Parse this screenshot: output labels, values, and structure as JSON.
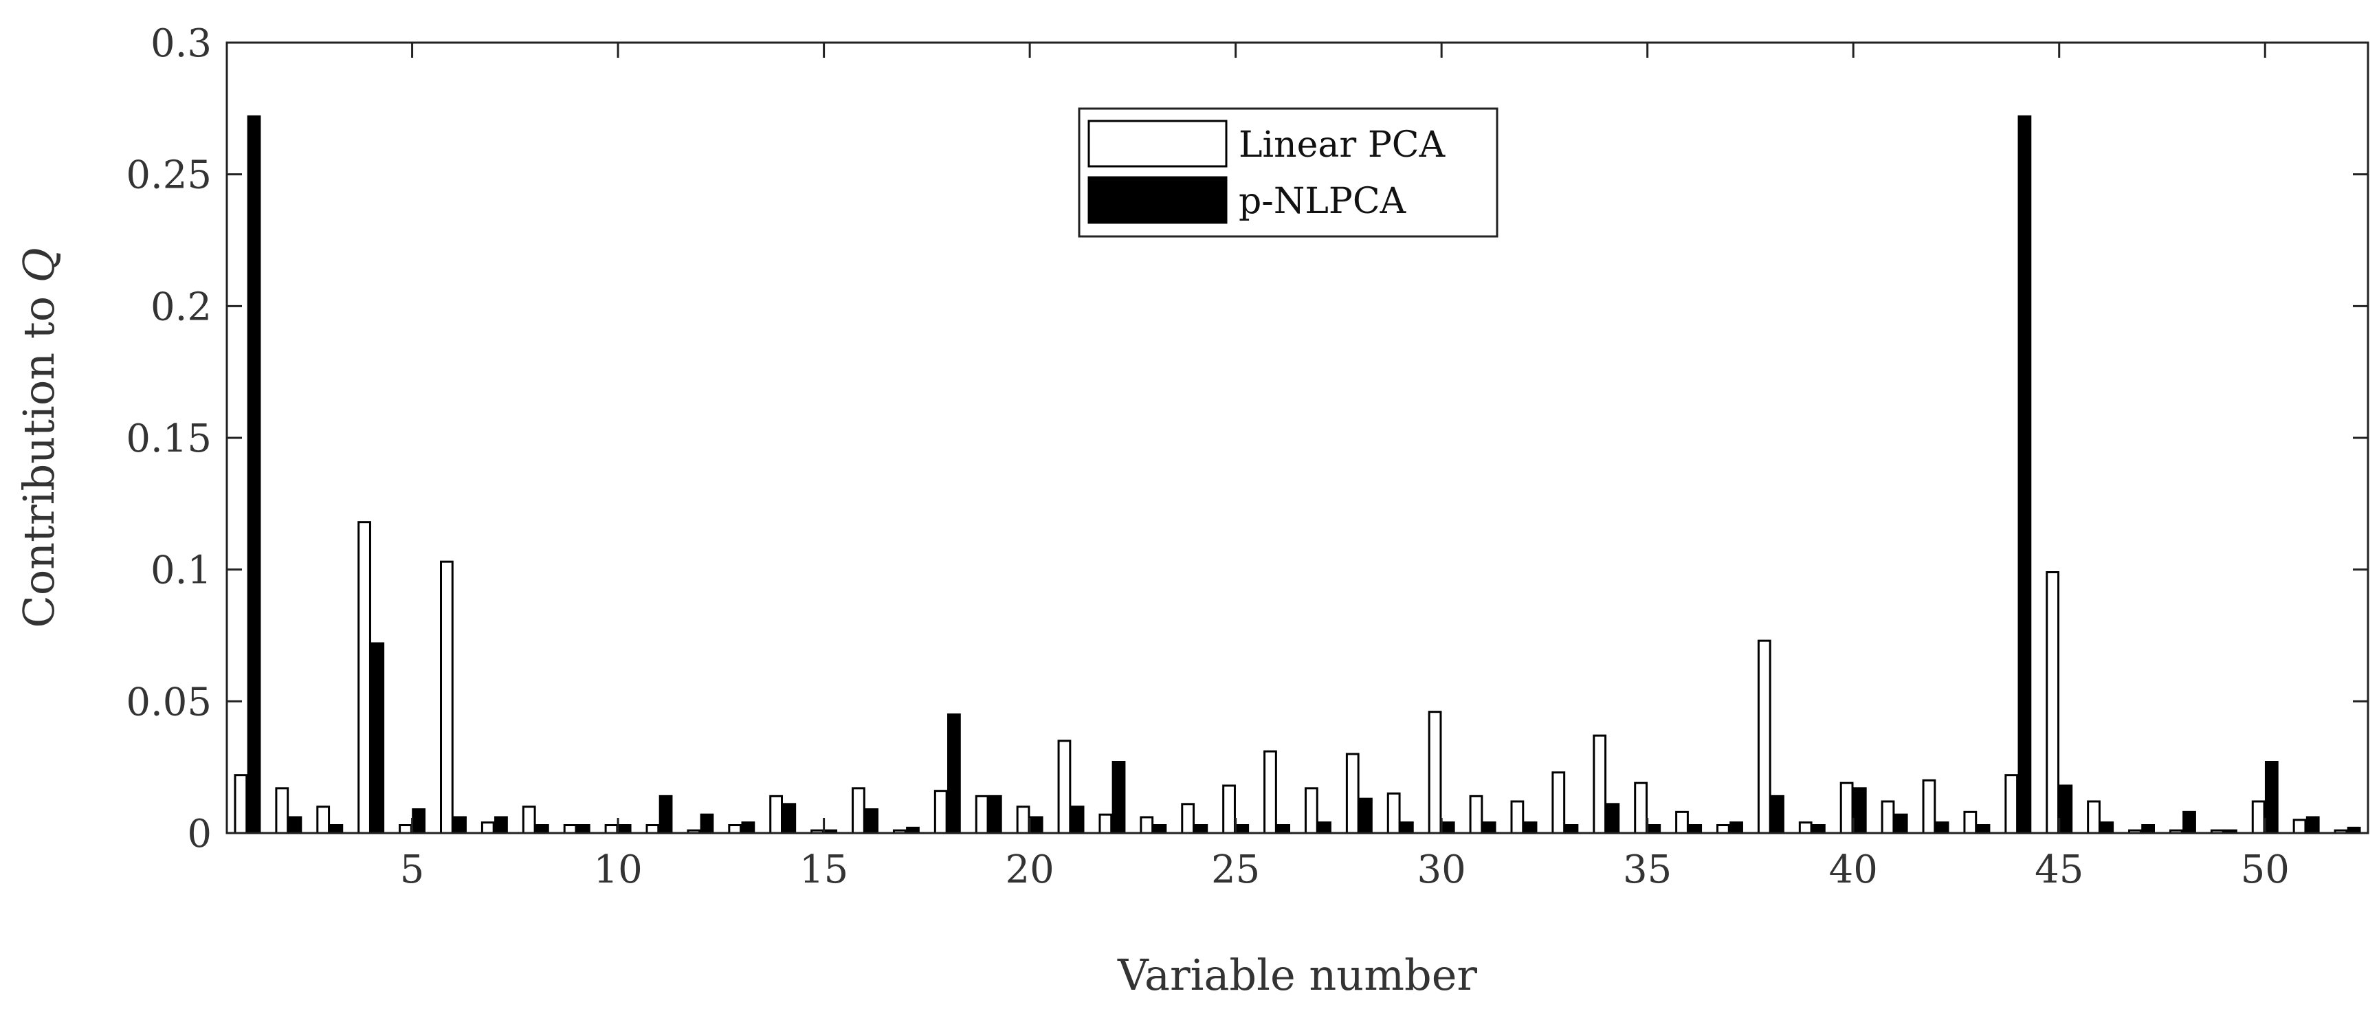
{
  "chart_data": {
    "type": "bar",
    "xlabel": "Variable number",
    "ylabel_prefix": "Contribution to ",
    "ylabel_symbol": "Q",
    "xlim": [
      0.5,
      52.5
    ],
    "ylim": [
      0,
      0.3
    ],
    "xticks": [
      5,
      10,
      15,
      20,
      25,
      30,
      35,
      40,
      45,
      50
    ],
    "yticks": [
      0,
      0.05,
      0.1,
      0.15,
      0.2,
      0.25,
      0.3
    ],
    "ytick_labels": [
      "0",
      "0.05",
      "0.1",
      "0.15",
      "0.2",
      "0.25",
      "0.3"
    ],
    "grid": false,
    "legend_position": "top-center",
    "x": [
      1,
      2,
      3,
      4,
      5,
      6,
      7,
      8,
      9,
      10,
      11,
      12,
      13,
      14,
      15,
      16,
      17,
      18,
      19,
      20,
      21,
      22,
      23,
      24,
      25,
      26,
      27,
      28,
      29,
      30,
      31,
      32,
      33,
      34,
      35,
      36,
      37,
      38,
      39,
      40,
      41,
      42,
      43,
      44,
      45,
      46,
      47,
      48,
      49,
      50,
      51,
      52
    ],
    "series": [
      {
        "name": "Linear PCA",
        "fill": "#ffffff",
        "values": [
          0.022,
          0.017,
          0.01,
          0.118,
          0.003,
          0.103,
          0.004,
          0.01,
          0.003,
          0.003,
          0.003,
          0.001,
          0.003,
          0.014,
          0.001,
          0.017,
          0.001,
          0.016,
          0.014,
          0.01,
          0.035,
          0.007,
          0.006,
          0.011,
          0.018,
          0.031,
          0.017,
          0.03,
          0.015,
          0.046,
          0.014,
          0.012,
          0.023,
          0.037,
          0.019,
          0.008,
          0.003,
          0.073,
          0.004,
          0.019,
          0.012,
          0.02,
          0.008,
          0.022,
          0.099,
          0.012,
          0.001,
          0.001,
          0.001,
          0.012,
          0.005,
          0.001
        ]
      },
      {
        "name": "p-NLPCA",
        "fill": "#000000",
        "values": [
          0.272,
          0.006,
          0.003,
          0.072,
          0.009,
          0.006,
          0.006,
          0.003,
          0.003,
          0.003,
          0.014,
          0.007,
          0.004,
          0.011,
          0.001,
          0.009,
          0.002,
          0.045,
          0.014,
          0.006,
          0.01,
          0.027,
          0.003,
          0.003,
          0.003,
          0.003,
          0.004,
          0.013,
          0.004,
          0.004,
          0.004,
          0.004,
          0.003,
          0.011,
          0.003,
          0.003,
          0.004,
          0.014,
          0.003,
          0.017,
          0.007,
          0.004,
          0.003,
          0.272,
          0.018,
          0.004,
          0.003,
          0.008,
          0.001,
          0.027,
          0.006,
          0.002
        ]
      }
    ]
  }
}
